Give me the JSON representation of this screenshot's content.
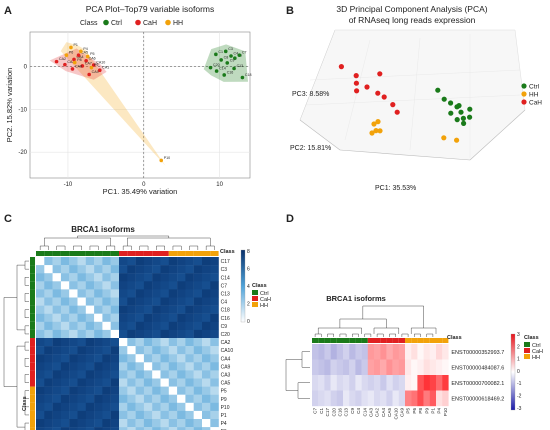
{
  "colors": {
    "Ctrl": "#1a7a1a",
    "CaH": "#e02020",
    "HH": "#f2a20a"
  },
  "chart_data": [
    {
      "panel": "A",
      "type": "scatter",
      "title": "PCA Plot–Top79 variable isoforms",
      "legend_title": "Class",
      "legend_items": [
        "Ctrl",
        "CaH",
        "HH"
      ],
      "legend_position": "top",
      "xlabel": "PC1. 35.49% variation",
      "ylabel": "PC2. 15.82% variation",
      "xlim": [
        -15,
        14
      ],
      "ylim": [
        -26,
        8
      ],
      "xticks": [
        -10,
        0,
        10
      ],
      "yticks": [
        0,
        -10,
        -20
      ],
      "grid": true,
      "series": [
        {
          "name": "Ctrl",
          "x": [
            9.5,
            10.8,
            11.5,
            12.0,
            12.6,
            10.2,
            11.0,
            11.9,
            9.6,
            10.6,
            13.0,
            8.8
          ],
          "y": [
            2.8,
            3.5,
            2.4,
            1.9,
            2.6,
            1.5,
            0.8,
            -0.5,
            -1.1,
            -2.0,
            -2.6,
            -0.3
          ],
          "labels": [
            "C1",
            "C3",
            "C4",
            "C5",
            "C7",
            "C8",
            "C9",
            "C13",
            "C14",
            "C16",
            "C18",
            "C20"
          ]
        },
        {
          "name": "CaH",
          "x": [
            -11.5,
            -10.4,
            -9.2,
            -8.6,
            -7.6,
            -8.1,
            -9.4,
            -7.2,
            -6.6,
            -5.8
          ],
          "y": [
            1.1,
            0.4,
            1.6,
            2.6,
            1.3,
            0.1,
            -0.6,
            -1.9,
            0.3,
            -0.9
          ],
          "labels": [
            "CA2",
            "CA3",
            "CA4",
            "CA5",
            "CA6",
            "CA7",
            "CA8",
            "CA9",
            "CA10",
            "CA1"
          ]
        },
        {
          "name": "HH",
          "x": [
            -9.6,
            -8.3,
            -7.4,
            -10.2,
            -9.1,
            -6.9,
            2.3
          ],
          "y": [
            4.4,
            3.5,
            2.3,
            2.6,
            0.9,
            -0.3,
            -21.9
          ],
          "labels": [
            "P1",
            "P4",
            "P5",
            "P6",
            "P8",
            "P9",
            "P10"
          ]
        }
      ]
    },
    {
      "panel": "B",
      "type": "scatter",
      "title": "3D Principal Component Analysis (PCA)",
      "subtitle": "of RNAseq long reads expression",
      "axis_labels": [
        "PC1: 35.53%",
        "PC2: 15.81%",
        "PC3: 8.58%"
      ],
      "legend_items": [
        "Ctrl",
        "HH",
        "CaH"
      ],
      "legend_position": "right",
      "series": [
        {
          "name": "CaH",
          "x": [
            -12,
            -9,
            -10,
            -11,
            -8,
            -6,
            -7,
            -6,
            -5,
            -5
          ],
          "y": [
            6,
            5,
            3,
            1,
            2,
            0,
            -1,
            -2,
            -4,
            -6
          ],
          "z": [
            18,
            14,
            10,
            6,
            8,
            12,
            4,
            2,
            -2,
            -6
          ]
        },
        {
          "name": "HH",
          "x": [
            -8,
            -10,
            -9,
            -11,
            -7,
            6,
            4
          ],
          "y": [
            -3,
            -5,
            -4,
            -6,
            -2,
            -12,
            -10
          ],
          "z": [
            -8,
            -10,
            -12,
            -14,
            -11,
            -20,
            -18
          ]
        },
        {
          "name": "Ctrl",
          "x": [
            12,
            13,
            14,
            15,
            13,
            16,
            17,
            18,
            14,
            15,
            16,
            17
          ],
          "y": [
            8,
            7,
            6,
            5,
            4,
            6,
            7,
            5,
            3,
            2,
            4,
            3
          ],
          "z": [
            10,
            6,
            4,
            2,
            -1,
            3,
            1,
            -2,
            -4,
            -6,
            -3,
            0
          ]
        }
      ]
    },
    {
      "panel": "C",
      "type": "heatmap",
      "title": "BRCA1 isoforms",
      "class_label": "Class",
      "legend_title": "Class",
      "legend_items": [
        "Ctrl",
        "CaH",
        "HH"
      ],
      "scale_ticks": [
        8,
        6,
        4,
        2,
        0
      ],
      "rows": [
        "C17",
        "C3",
        "C14",
        "C7",
        "C13",
        "C4",
        "C18",
        "C16",
        "C9",
        "C20",
        "CA2",
        "CA10",
        "CA4",
        "CA9",
        "CA3",
        "CA5",
        "P5",
        "P9",
        "P10",
        "P1",
        "P4",
        "P6"
      ],
      "columns": [
        "C1",
        "C7",
        "C4",
        "C3",
        "C14",
        "C18",
        "C13",
        "C16",
        "C9",
        "C20",
        "CA2",
        "CA10",
        "CA4",
        "CA9",
        "CA3",
        "CA5",
        "P5",
        "P9",
        "P10",
        "P1",
        "P4",
        "P6"
      ],
      "row_class": [
        "Ctrl",
        "Ctrl",
        "Ctrl",
        "Ctrl",
        "Ctrl",
        "Ctrl",
        "Ctrl",
        "Ctrl",
        "Ctrl",
        "Ctrl",
        "CaH",
        "CaH",
        "CaH",
        "CaH",
        "CaH",
        "CaH",
        "HH",
        "HH",
        "HH",
        "HH",
        "HH",
        "HH"
      ],
      "col_class": [
        "Ctrl",
        "Ctrl",
        "Ctrl",
        "Ctrl",
        "Ctrl",
        "Ctrl",
        "Ctrl",
        "Ctrl",
        "Ctrl",
        "Ctrl",
        "CaH",
        "CaH",
        "CaH",
        "CaH",
        "CaH",
        "CaH",
        "HH",
        "HH",
        "HH",
        "HH",
        "HH",
        "HH"
      ],
      "within_group_value": 1.5,
      "between_group_value": 7.5,
      "diagonal_value": 0
    },
    {
      "panel": "D",
      "type": "heatmap",
      "title": "BRCA1 isoforms",
      "class_label": "Class",
      "legend_title": "Class",
      "legend_items": [
        "Ctrl",
        "CaH",
        "HH"
      ],
      "scale_ticks": [
        3,
        2,
        1,
        0,
        -1,
        -2,
        -3
      ],
      "rows": [
        "ENST00000352993.7",
        "ENST00000484087.6",
        "ENST00000700082.1",
        "ENST00000618469.2"
      ],
      "columns": [
        "C7",
        "C1",
        "C17",
        "C20",
        "C16",
        "C13",
        "C9",
        "C4",
        "C14",
        "CA3",
        "CA2",
        "CA4",
        "CA5",
        "CA10",
        "CA9",
        "P5",
        "P6",
        "P8",
        "P9",
        "P1",
        "P4",
        "P10"
      ],
      "col_class": [
        "Ctrl",
        "Ctrl",
        "Ctrl",
        "Ctrl",
        "Ctrl",
        "Ctrl",
        "Ctrl",
        "Ctrl",
        "Ctrl",
        "CaH",
        "CaH",
        "CaH",
        "CaH",
        "CaH",
        "CaH",
        "HH",
        "HH",
        "HH",
        "HH",
        "HH",
        "HH",
        "HH"
      ],
      "values": [
        [
          -0.8,
          -0.9,
          -0.7,
          -1.0,
          -0.8,
          -0.6,
          -0.9,
          -0.7,
          -0.8,
          1.3,
          1.2,
          1.4,
          1.1,
          1.3,
          1.2,
          0.2,
          0.4,
          0.1,
          0.3,
          0.2,
          0.5,
          0.3
        ],
        [
          -0.7,
          -0.8,
          -0.9,
          -0.6,
          -0.7,
          -0.8,
          -0.6,
          -0.9,
          -0.7,
          1.2,
          1.3,
          1.1,
          1.4,
          1.2,
          1.3,
          0.3,
          0.1,
          0.2,
          0.4,
          0.3,
          0.2,
          0.1
        ],
        [
          -0.5,
          -0.4,
          -0.6,
          -0.3,
          -0.5,
          -0.4,
          -0.6,
          -0.3,
          -0.5,
          -0.6,
          -0.5,
          -0.7,
          -0.4,
          -0.6,
          -0.5,
          0.2,
          0.1,
          2.2,
          2.6,
          2.4,
          1.9,
          2.5
        ],
        [
          -0.6,
          -0.5,
          -0.4,
          -0.6,
          -0.7,
          -0.3,
          -0.5,
          -0.6,
          -0.4,
          -0.3,
          -0.5,
          -0.4,
          -0.6,
          -0.3,
          -0.5,
          1.6,
          1.8,
          2.3,
          1.7,
          2.1,
          0.4,
          0.6
        ]
      ]
    }
  ],
  "panels": {
    "a": "A",
    "b": "B",
    "c": "C",
    "d": "D"
  }
}
